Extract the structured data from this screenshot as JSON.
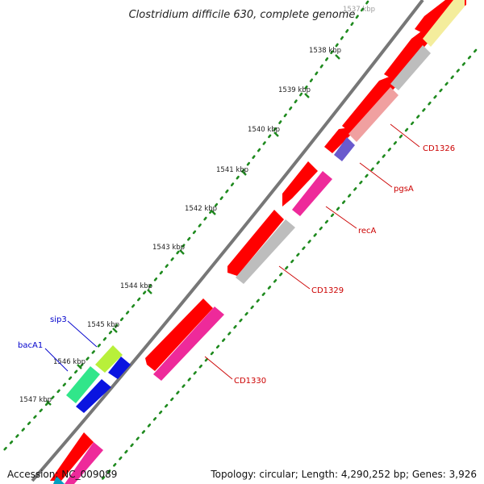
{
  "map": {
    "title": "Clostridium difficile 630, complete genome",
    "accession": "Accession: NC_009089",
    "summary": "Topology: circular; Length: 4,290,252 bp; Genes: 3,926"
  },
  "ticks": [
    {
      "label": "1537 kbp"
    },
    {
      "label": "1538 kbp"
    },
    {
      "label": "1539 kbp"
    },
    {
      "label": "1540 kbp"
    },
    {
      "label": "1541 kbp"
    },
    {
      "label": "1542 kbp"
    },
    {
      "label": "1543 kbp"
    },
    {
      "label": "1544 kbp"
    },
    {
      "label": "1545 kbp"
    },
    {
      "label": "1546 kbp"
    },
    {
      "label": "1547 kbp"
    }
  ],
  "gene_labels": [
    {
      "text": "CD1326",
      "color": "#cc0000"
    },
    {
      "text": "pgsA",
      "color": "#cc0000"
    },
    {
      "text": "recA",
      "color": "#cc0000"
    },
    {
      "text": "CD1329",
      "color": "#cc0000"
    },
    {
      "text": "CD1330",
      "color": "#cc0000"
    },
    {
      "text": "sip3",
      "color": "#0000cc"
    },
    {
      "text": "bacA1",
      "color": "#0000cc"
    }
  ],
  "colors": {
    "backbone": "#777777",
    "tick_dots": "#1e8a1e",
    "cds_outer": "#ff0000",
    "gray": "#bdbdbd",
    "pink": "#f0a0a0",
    "magenta": "#ee2a9a",
    "yellow": "#f4ed9c",
    "purple": "#6a5acd",
    "green": "#31e68a",
    "lime": "#b8f03a",
    "blue": "#0a14e0"
  }
}
